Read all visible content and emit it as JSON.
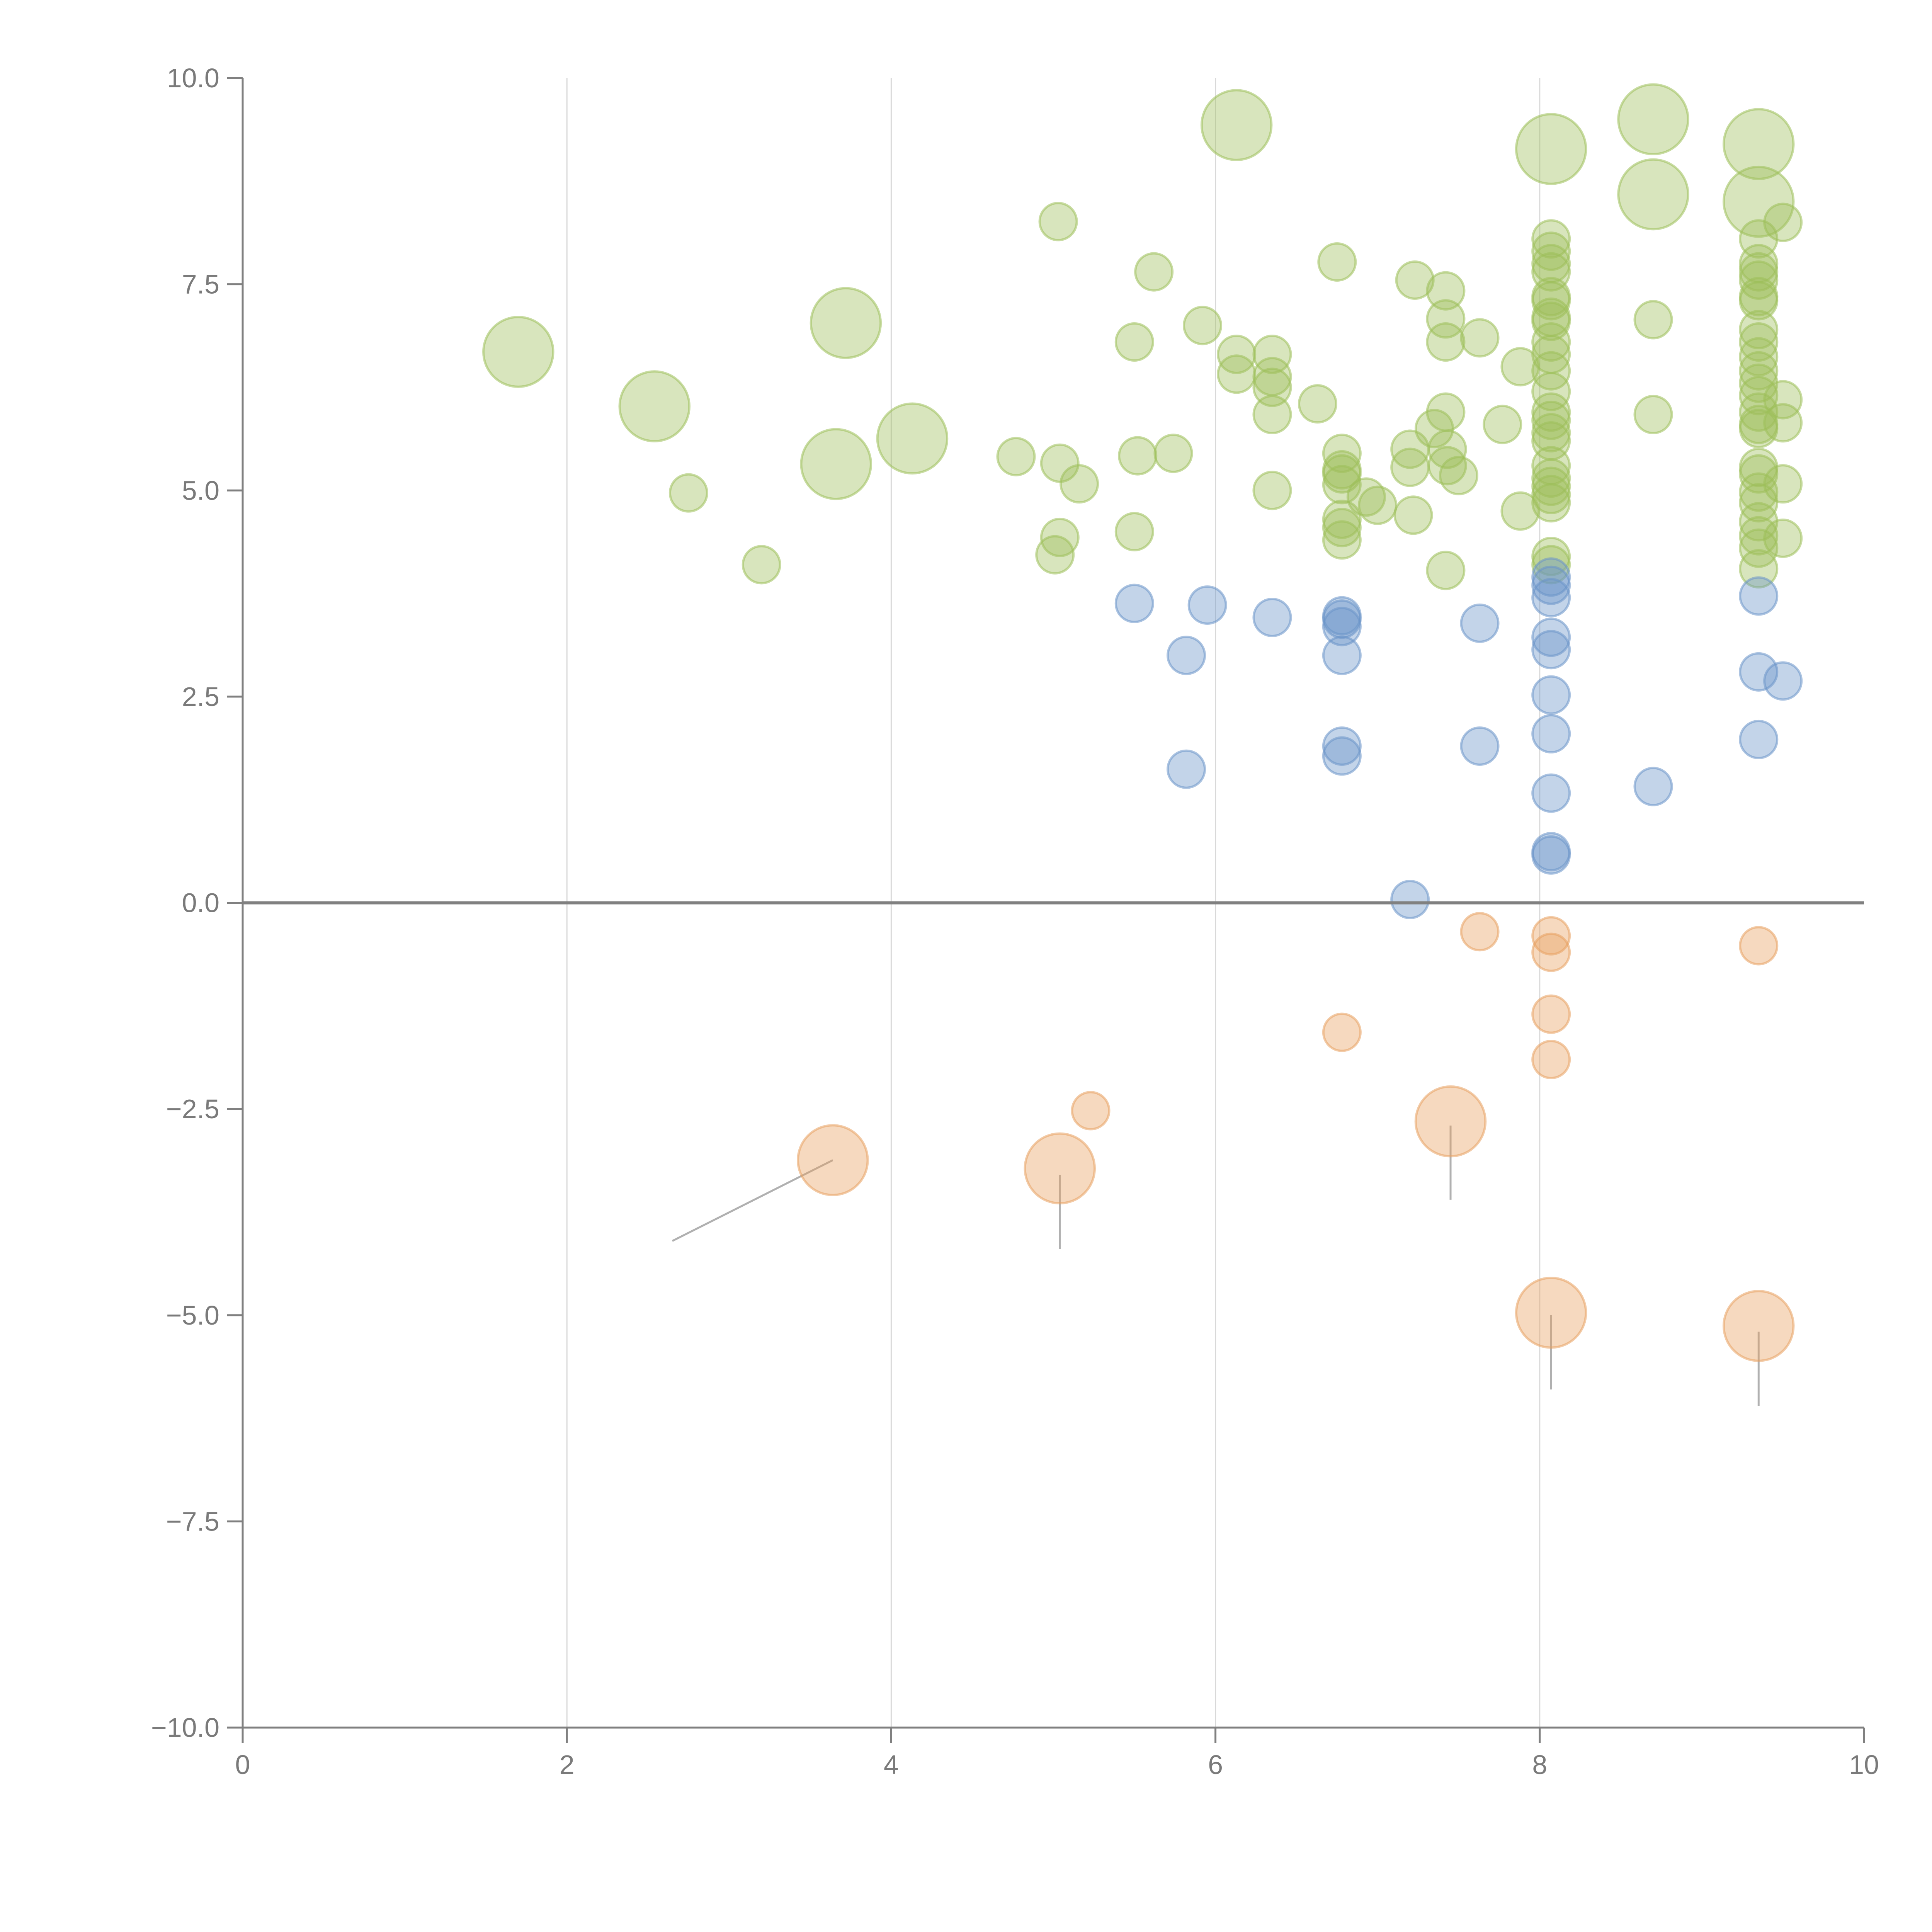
{
  "chart_data": {
    "type": "scatter",
    "title": "",
    "xlabel": "",
    "ylabel": "",
    "xlim": [
      0,
      10
    ],
    "ylim": [
      -10,
      10
    ],
    "x_ticks": [
      0,
      2,
      4,
      6,
      8,
      10
    ],
    "x_tick_labels": [
      "0",
      "2",
      "4",
      "6",
      "8",
      "10"
    ],
    "y_ticks": [
      10,
      7.5,
      5,
      2.5,
      0,
      -2.5,
      -5,
      -7.5,
      -10
    ],
    "y_tick_labels": [
      "10.0",
      "7.5",
      "5.0",
      "2.5",
      "0.0",
      "−2.5",
      "−5.0",
      "−7.5",
      "−10.0"
    ],
    "vertical_grid": [
      2,
      4,
      6,
      8
    ],
    "zero_line": true,
    "point_format": [
      "x",
      "y",
      "size"
    ],
    "series": [
      {
        "name": "green",
        "color": "#9dbf5a",
        "points": [
          [
            1.7,
            6.68,
            4
          ],
          [
            2.54,
            6.02,
            4
          ],
          [
            3.72,
            7.03,
            4
          ],
          [
            3.66,
            5.32,
            4
          ],
          [
            4.13,
            5.63,
            4
          ],
          [
            6.13,
            9.43,
            4
          ],
          [
            8.07,
            9.14,
            4
          ],
          [
            8.7,
            9.5,
            4
          ],
          [
            8.7,
            8.59,
            4
          ],
          [
            9.35,
            9.2,
            4
          ],
          [
            9.35,
            8.5,
            4
          ],
          [
            2.75,
            4.97,
            1
          ],
          [
            3.2,
            4.1,
            1
          ],
          [
            4.77,
            5.41,
            1
          ],
          [
            5.03,
            8.26,
            1
          ],
          [
            5.04,
            5.33,
            1
          ],
          [
            5.16,
            5.08,
            1
          ],
          [
            5.04,
            4.43,
            1
          ],
          [
            5.01,
            4.22,
            1
          ],
          [
            5.5,
            6.8,
            1
          ],
          [
            5.52,
            5.42,
            1
          ],
          [
            5.5,
            4.5,
            1
          ],
          [
            5.62,
            7.65,
            1
          ],
          [
            5.74,
            5.45,
            1
          ],
          [
            5.92,
            7.0,
            1
          ],
          [
            6.13,
            6.65,
            1
          ],
          [
            6.13,
            6.41,
            1
          ],
          [
            6.35,
            6.65,
            1
          ],
          [
            6.35,
            6.38,
            1
          ],
          [
            6.35,
            6.25,
            1
          ],
          [
            6.35,
            5.92,
            1
          ],
          [
            6.35,
            5.0,
            1
          ],
          [
            6.63,
            6.05,
            1
          ],
          [
            6.75,
            7.77,
            1
          ],
          [
            6.78,
            5.45,
            1
          ],
          [
            6.78,
            5.25,
            1
          ],
          [
            6.78,
            5.2,
            1
          ],
          [
            6.78,
            5.07,
            1
          ],
          [
            6.78,
            4.65,
            1
          ],
          [
            6.78,
            4.55,
            1
          ],
          [
            6.78,
            4.4,
            1
          ],
          [
            6.93,
            4.92,
            1
          ],
          [
            7.0,
            4.82,
            1
          ],
          [
            7.2,
            5.5,
            1
          ],
          [
            7.2,
            5.28,
            1
          ],
          [
            7.22,
            4.7,
            1
          ],
          [
            7.23,
            7.55,
            1
          ],
          [
            7.35,
            5.75,
            1
          ],
          [
            7.42,
            5.95,
            1
          ],
          [
            7.43,
            5.5,
            1
          ],
          [
            7.43,
            5.3,
            1
          ],
          [
            7.5,
            5.18,
            1
          ],
          [
            7.42,
            7.42,
            1
          ],
          [
            7.42,
            7.08,
            1
          ],
          [
            7.42,
            6.8,
            1
          ],
          [
            7.42,
            4.03,
            1
          ],
          [
            7.63,
            6.85,
            1
          ],
          [
            7.77,
            5.8,
            1
          ],
          [
            7.88,
            6.5,
            1
          ],
          [
            7.88,
            4.75,
            1
          ],
          [
            8.07,
            8.05,
            1
          ],
          [
            8.07,
            7.9,
            1
          ],
          [
            8.07,
            7.75,
            1
          ],
          [
            8.07,
            7.65,
            1
          ],
          [
            8.07,
            7.35,
            1
          ],
          [
            8.07,
            7.3,
            1
          ],
          [
            8.07,
            7.1,
            1
          ],
          [
            8.07,
            7.05,
            1
          ],
          [
            8.07,
            6.8,
            1
          ],
          [
            8.07,
            6.65,
            1
          ],
          [
            8.07,
            6.45,
            1
          ],
          [
            8.07,
            6.2,
            1
          ],
          [
            8.07,
            5.95,
            1
          ],
          [
            8.07,
            5.85,
            1
          ],
          [
            8.07,
            5.7,
            1
          ],
          [
            8.07,
            5.6,
            1
          ],
          [
            8.07,
            5.3,
            1
          ],
          [
            8.07,
            5.15,
            1
          ],
          [
            8.07,
            5.05,
            1
          ],
          [
            8.07,
            4.95,
            1
          ],
          [
            8.07,
            4.85,
            1
          ],
          [
            8.07,
            4.2,
            1
          ],
          [
            8.07,
            4.1,
            1
          ],
          [
            8.7,
            7.07,
            1
          ],
          [
            8.7,
            5.92,
            1
          ],
          [
            9.35,
            8.05,
            1
          ],
          [
            9.35,
            7.75,
            1
          ],
          [
            9.35,
            7.65,
            1
          ],
          [
            9.35,
            7.55,
            1
          ],
          [
            9.35,
            7.35,
            1
          ],
          [
            9.35,
            7.3,
            1
          ],
          [
            9.35,
            6.95,
            1
          ],
          [
            9.35,
            6.8,
            1
          ],
          [
            9.35,
            6.62,
            1
          ],
          [
            9.35,
            6.45,
            1
          ],
          [
            9.35,
            6.3,
            1
          ],
          [
            9.35,
            6.15,
            1
          ],
          [
            9.35,
            5.95,
            1
          ],
          [
            9.35,
            5.8,
            1
          ],
          [
            9.35,
            5.75,
            1
          ],
          [
            9.35,
            5.28,
            1
          ],
          [
            9.35,
            5.2,
            1
          ],
          [
            9.35,
            4.98,
            1
          ],
          [
            9.35,
            4.85,
            1
          ],
          [
            9.35,
            4.62,
            1
          ],
          [
            9.35,
            4.45,
            1
          ],
          [
            9.35,
            4.3,
            1
          ],
          [
            9.35,
            4.05,
            1
          ],
          [
            9.5,
            8.25,
            1
          ],
          [
            9.5,
            6.1,
            1
          ],
          [
            9.5,
            5.82,
            1
          ],
          [
            9.5,
            5.08,
            1
          ],
          [
            9.5,
            4.42,
            1
          ]
        ]
      },
      {
        "name": "blue",
        "color": "#6a94c8",
        "points": [
          [
            5.5,
            3.63,
            1
          ],
          [
            5.95,
            3.61,
            1
          ],
          [
            5.82,
            3.0,
            1
          ],
          [
            5.82,
            1.62,
            1
          ],
          [
            6.35,
            3.46,
            1
          ],
          [
            6.78,
            3.48,
            1
          ],
          [
            6.78,
            3.44,
            1
          ],
          [
            6.78,
            3.35,
            1
          ],
          [
            6.78,
            3.0,
            1
          ],
          [
            6.78,
            1.9,
            1
          ],
          [
            6.78,
            1.78,
            1
          ],
          [
            7.2,
            0.04,
            1
          ],
          [
            7.63,
            3.39,
            1
          ],
          [
            7.63,
            1.9,
            1
          ],
          [
            8.07,
            3.95,
            1
          ],
          [
            8.07,
            3.85,
            1
          ],
          [
            8.07,
            3.7,
            1
          ],
          [
            8.07,
            3.22,
            1
          ],
          [
            8.07,
            3.07,
            1
          ],
          [
            8.07,
            2.52,
            1
          ],
          [
            8.07,
            2.05,
            1
          ],
          [
            8.07,
            1.33,
            1
          ],
          [
            8.07,
            0.62,
            1
          ],
          [
            8.07,
            0.58,
            1
          ],
          [
            8.7,
            1.41,
            1
          ],
          [
            9.35,
            3.72,
            1
          ],
          [
            9.35,
            2.8,
            1
          ],
          [
            9.35,
            1.98,
            1
          ],
          [
            9.5,
            2.69,
            1
          ]
        ]
      },
      {
        "name": "orange",
        "color": "#e8a060",
        "points": [
          [
            6.78,
            -1.57,
            1
          ],
          [
            7.63,
            -0.35,
            1
          ],
          [
            8.07,
            -0.4,
            1
          ],
          [
            8.07,
            -0.6,
            1
          ],
          [
            8.07,
            -1.35,
            1
          ],
          [
            8.07,
            -1.9,
            1
          ],
          [
            9.35,
            -0.52,
            1
          ],
          [
            5.23,
            -2.52,
            1
          ],
          [
            3.64,
            -3.12,
            4
          ],
          [
            5.04,
            -3.22,
            4
          ],
          [
            7.45,
            -2.65,
            4
          ],
          [
            8.07,
            -4.97,
            4
          ],
          [
            9.35,
            -5.13,
            4
          ]
        ]
      }
    ],
    "leader_lines": [
      [
        [
          3.64,
          -3.12
        ],
        [
          2.65,
          -4.1
        ]
      ],
      [
        [
          5.04,
          -3.3
        ],
        [
          5.04,
          -4.2
        ]
      ],
      [
        [
          7.45,
          -2.7
        ],
        [
          7.45,
          -3.6
        ]
      ],
      [
        [
          8.07,
          -5.0
        ],
        [
          8.07,
          -5.9
        ]
      ],
      [
        [
          9.35,
          -5.2
        ],
        [
          9.35,
          -6.1
        ]
      ]
    ]
  }
}
